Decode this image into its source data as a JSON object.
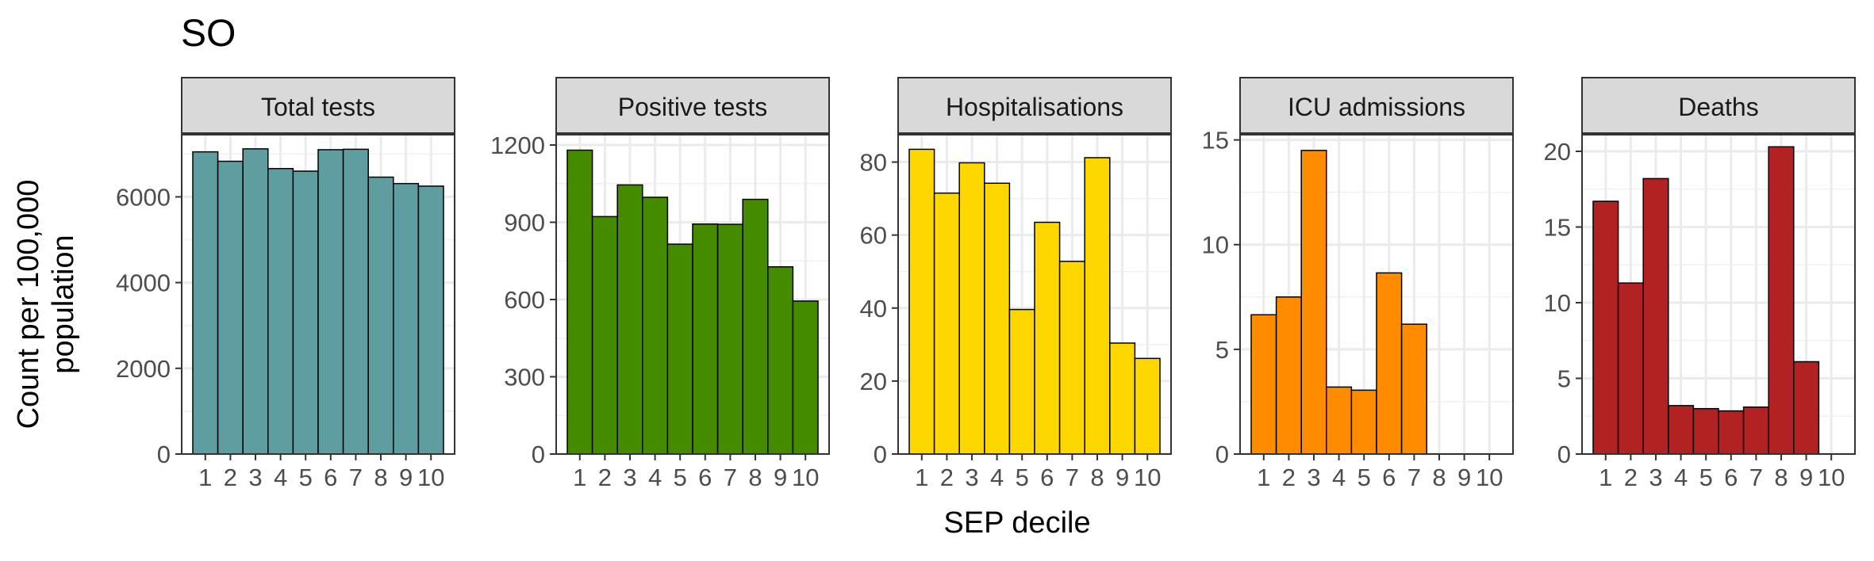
{
  "figure": {
    "title": "SO",
    "xlabel": "SEP decile",
    "ylabel_line1": "Count per 100,000",
    "ylabel_line2": "population"
  },
  "chart_data": [
    {
      "type": "bar",
      "title": "Total tests",
      "categories": [
        "1",
        "2",
        "3",
        "4",
        "5",
        "6",
        "7",
        "8",
        "9",
        "10"
      ],
      "values": [
        7050,
        6830,
        7120,
        6660,
        6600,
        7100,
        7110,
        6460,
        6310,
        6250
      ],
      "yticks": [
        0,
        2000,
        4000,
        6000
      ],
      "ylim": [
        0,
        7450
      ],
      "color": "#5F9EA0"
    },
    {
      "type": "bar",
      "title": "Positive tests",
      "categories": [
        "1",
        "2",
        "3",
        "4",
        "5",
        "6",
        "7",
        "8",
        "9",
        "10"
      ],
      "values": [
        1180,
        922,
        1045,
        997,
        815,
        893,
        892,
        989,
        727,
        594
      ],
      "yticks": [
        0,
        300,
        600,
        900,
        1200
      ],
      "ylim": [
        0,
        1240
      ],
      "color": "#458B00"
    },
    {
      "type": "bar",
      "title": "Hospitalisations",
      "categories": [
        "1",
        "2",
        "3",
        "4",
        "5",
        "6",
        "7",
        "8",
        "9",
        "10"
      ],
      "values": [
        83.5,
        71.5,
        79.8,
        74.2,
        39.6,
        63.5,
        52.8,
        81.2,
        30.4,
        26.2
      ],
      "yticks": [
        0,
        20,
        40,
        60,
        80
      ],
      "ylim": [
        0,
        87.5
      ],
      "color": "#FFD700"
    },
    {
      "type": "bar",
      "title": "ICU admissions",
      "categories": [
        "1",
        "2",
        "3",
        "4",
        "5",
        "6",
        "7",
        "8",
        "9",
        "10"
      ],
      "values": [
        6.65,
        7.5,
        14.5,
        3.2,
        3.05,
        8.65,
        6.2,
        0,
        0,
        0
      ],
      "yticks": [
        0,
        5,
        10,
        15
      ],
      "ylim": [
        0,
        15.25
      ],
      "color": "#FF8C00"
    },
    {
      "type": "bar",
      "title": "Deaths",
      "categories": [
        "1",
        "2",
        "3",
        "4",
        "5",
        "6",
        "7",
        "8",
        "9",
        "10"
      ],
      "values": [
        16.7,
        11.3,
        18.2,
        3.2,
        3.0,
        2.85,
        3.1,
        20.3,
        6.1,
        0
      ],
      "yticks": [
        0,
        5,
        10,
        15,
        20
      ],
      "ylim": [
        0,
        21.1
      ],
      "color": "#B22222"
    }
  ]
}
